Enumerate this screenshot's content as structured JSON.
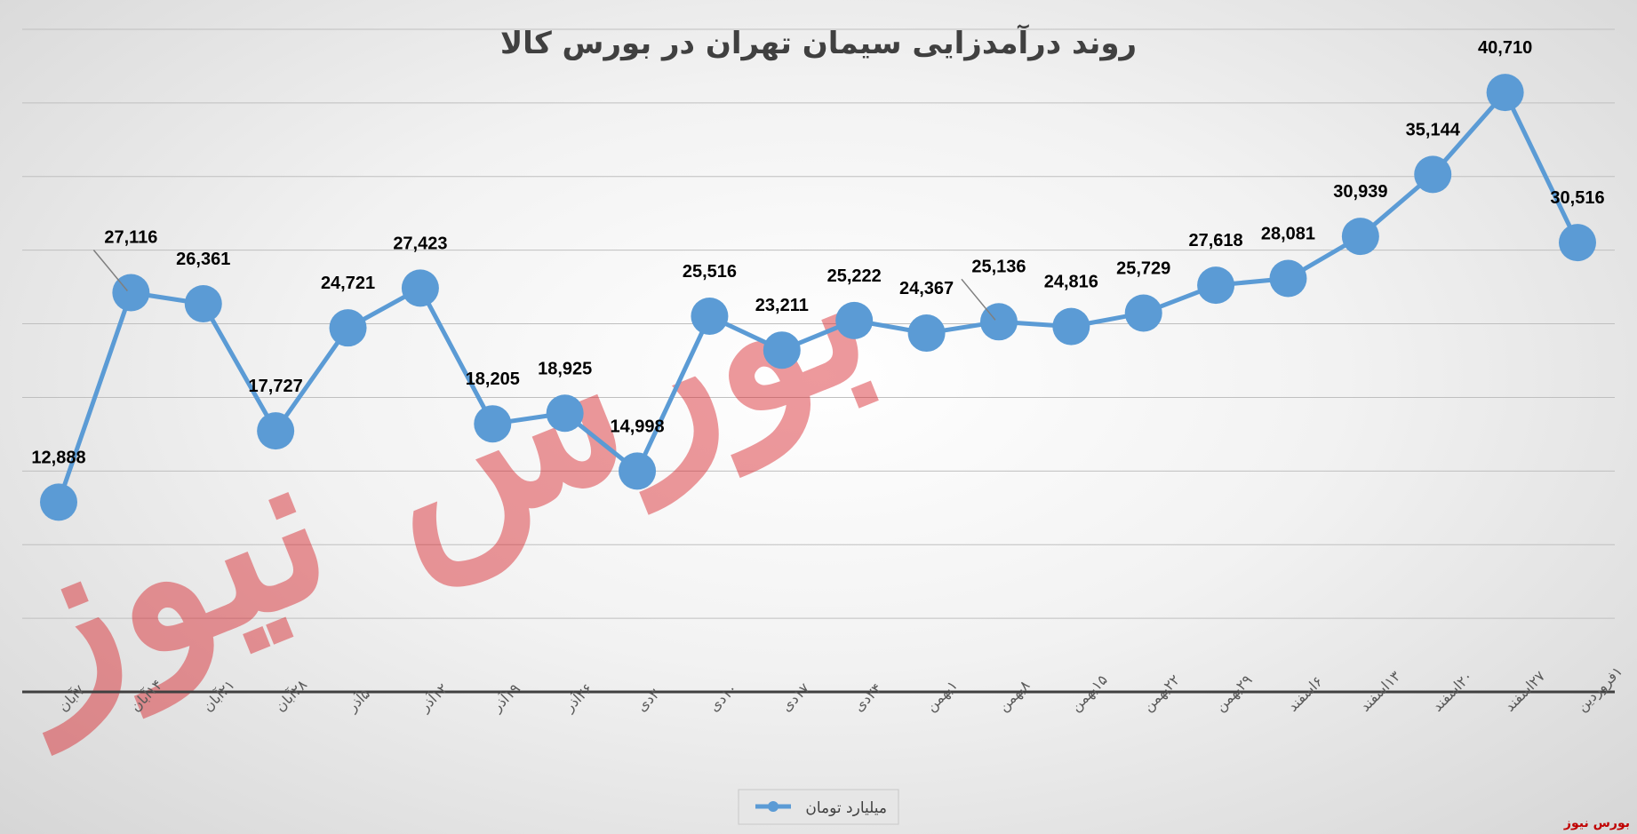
{
  "chart_data": {
    "type": "line",
    "title": "روند درآمدزایی سیمان تهران در بورس کالا",
    "categories": [
      "۷آبان",
      "۱۴آبان",
      "۲۱آبان",
      "۲۸آبان",
      "۵آذر",
      "۱۲آذر",
      "۱۹آذر",
      "۲۶آذر",
      "۳دی",
      "۱۰دی",
      "۱۷دی",
      "۲۴دی",
      "۱بهمن",
      "۸بهمن",
      "۱۵بهمن",
      "۲۲بهمن",
      "۲۹بهمن",
      "۶اسفند",
      "۱۳اسفند",
      "۲۰اسفند",
      "۲۷اسفند",
      "۱فروردین"
    ],
    "series": [
      {
        "name": "میلیارد تومان",
        "color": "#5b9bd5",
        "values": [
          12888,
          27116,
          26361,
          17727,
          24721,
          27423,
          18205,
          18925,
          14998,
          25516,
          23211,
          25222,
          24367,
          25136,
          24816,
          25729,
          27618,
          28081,
          30939,
          35144,
          40710,
          30516
        ],
        "labels": [
          "12,888",
          "27,116",
          "26,361",
          "17,727",
          "24,721",
          "27,423",
          "18,205",
          "18,925",
          "14,998",
          "25,516",
          "23,211",
          "25,222",
          "24,367",
          "25,136",
          "24,816",
          "25,729",
          "27,618",
          "28,081",
          "30,939",
          "35,144",
          "40,710",
          "30,516"
        ]
      }
    ],
    "ylim": [
      0,
      45000
    ],
    "grid": true,
    "legend": "bottom"
  },
  "brand": "بورس نیوز",
  "watermark": "بورس نیوز"
}
